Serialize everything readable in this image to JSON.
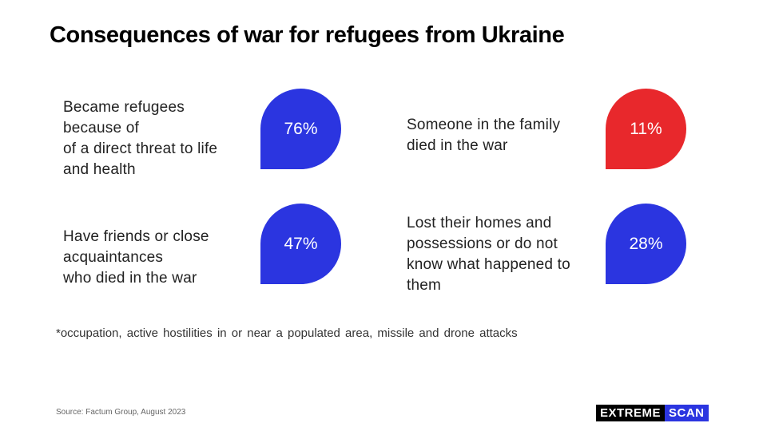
{
  "title": "Consequences of war for refugees from Ukraine",
  "chart_data": {
    "type": "table",
    "unit": "%",
    "items": [
      {
        "label": "Became refugees\nbecause of\nof a direct threat to life\nand health",
        "value": 76,
        "display": "76%",
        "color": "#2b35e0"
      },
      {
        "label": "Someone in the family\ndied in the war",
        "value": 11,
        "display": "11%",
        "color": "#e8282c"
      },
      {
        "label": "Have friends or close\nacquaintances\nwho died in the war",
        "value": 47,
        "display": "47%",
        "color": "#2b35e0"
      },
      {
        "label": "Lost their homes and\npossessions or do not\nknow what happened to\nthem",
        "value": 28,
        "display": "28%",
        "color": "#2b35e0"
      }
    ]
  },
  "footnote": "*occupation, active hostilities in or near a populated area, missile and drone attacks",
  "source": "Source: Factum Group, August 2023",
  "logo": {
    "part1": "EXTREME",
    "part2": "SCAN"
  }
}
